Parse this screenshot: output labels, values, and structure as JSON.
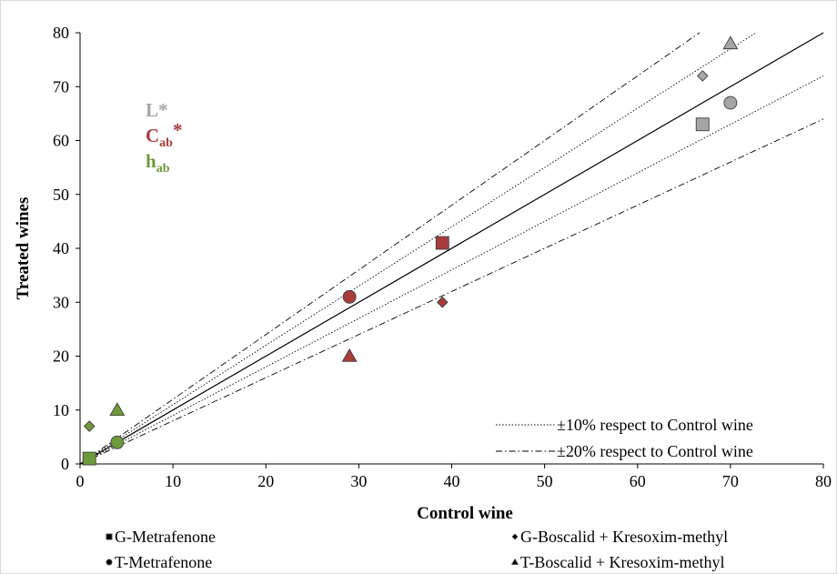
{
  "chart_data": {
    "type": "scatter",
    "xlabel": "Control wine",
    "ylabel": "Treated wines",
    "xlim": [
      0,
      80
    ],
    "ylim": [
      0,
      80
    ],
    "xticks": [
      0,
      10,
      20,
      30,
      40,
      50,
      60,
      70,
      80
    ],
    "yticks": [
      0,
      10,
      20,
      30,
      40,
      50,
      60,
      70,
      80
    ],
    "grid": false,
    "variables": [
      {
        "key": "L",
        "base": "L",
        "sub": "",
        "sup": "*",
        "color": "#a6a6a6"
      },
      {
        "key": "C",
        "base": "C",
        "sub": "ab",
        "sup": "*",
        "color": "#a83c3c"
      },
      {
        "key": "h",
        "base": "h",
        "sub": "ab",
        "sup": "",
        "color": "#6e9a3a"
      }
    ],
    "series": [
      {
        "name": "G-Metrafenone",
        "marker": "square",
        "points": [
          {
            "var": "L",
            "x": 67,
            "y": 63
          },
          {
            "var": "C",
            "x": 39,
            "y": 41
          },
          {
            "var": "h",
            "x": 1,
            "y": 1
          }
        ]
      },
      {
        "name": "T-Metrafenone",
        "marker": "circle",
        "points": [
          {
            "var": "L",
            "x": 70,
            "y": 67
          },
          {
            "var": "C",
            "x": 29,
            "y": 31
          },
          {
            "var": "h",
            "x": 4,
            "y": 4
          }
        ]
      },
      {
        "name": "G-Boscalid + Kresoxim-methyl",
        "marker": "diamond",
        "points": [
          {
            "var": "L",
            "x": 67,
            "y": 72
          },
          {
            "var": "C",
            "x": 39,
            "y": 30
          },
          {
            "var": "h",
            "x": 1,
            "y": 7
          }
        ]
      },
      {
        "name": "T-Boscalid + Kresoxim-methyl",
        "marker": "triangle",
        "points": [
          {
            "var": "L",
            "x": 70,
            "y": 78
          },
          {
            "var": "C",
            "x": 29,
            "y": 20
          },
          {
            "var": "h",
            "x": 4,
            "y": 10
          }
        ]
      }
    ],
    "reference_lines": [
      {
        "name": "identity",
        "slope": 1.0,
        "style": "solid"
      },
      {
        "name": "+10",
        "slope": 1.1,
        "style": "dotted"
      },
      {
        "name": "-10",
        "slope": 0.9,
        "style": "dotted"
      },
      {
        "name": "+20",
        "slope": 1.2,
        "style": "dashdot"
      },
      {
        "name": "-20",
        "slope": 0.8,
        "style": "dashdot"
      }
    ],
    "line_legend": [
      {
        "label": "±10% respect to Control wine",
        "style": "dotted"
      },
      {
        "label": "±20% respect to Control wine",
        "style": "dashdot"
      }
    ],
    "line_legend_placement": "bottom-right"
  }
}
